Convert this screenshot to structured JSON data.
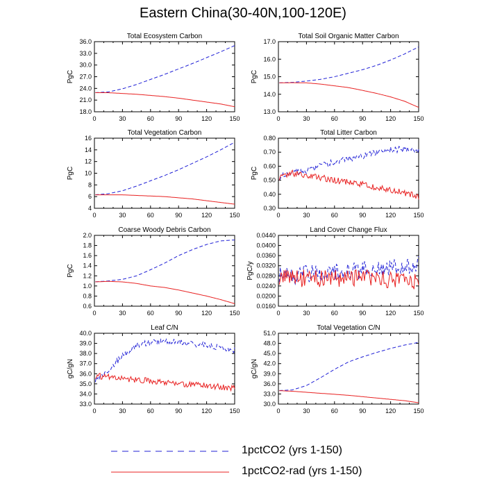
{
  "figure": {
    "title": "Eastern China(30-40N,100-120E)"
  },
  "legend": [
    {
      "label": "1pctCO2 (yrs 1-150)",
      "color": "#1f1fd6",
      "dash": "dashed"
    },
    {
      "label": "1pctCO2-rad (yrs 1-150)",
      "color": "#e82020",
      "dash": "solid"
    }
  ],
  "chart_data": [
    {
      "type": "line",
      "title": "Total Ecosystem Carbon",
      "ylabel": "PgC",
      "xlim": [
        0,
        150
      ],
      "ylim": [
        18,
        36
      ],
      "xticks": [
        0,
        30,
        60,
        90,
        120,
        150
      ],
      "yticks": [
        "18.0",
        "21.0",
        "24.0",
        "27.0",
        "30.0",
        "33.0",
        "36.0"
      ],
      "series": [
        {
          "name": "1pctCO2 (yrs 1-150)",
          "x": [
            0,
            15,
            30,
            45,
            60,
            75,
            90,
            105,
            120,
            135,
            150
          ],
          "y": [
            22.9,
            23.1,
            23.9,
            25.0,
            26.3,
            27.6,
            29.0,
            30.4,
            31.9,
            33.4,
            35.0
          ],
          "noise": 0
        },
        {
          "name": "1pctCO2-rad (yrs 1-150)",
          "x": [
            0,
            15,
            30,
            45,
            60,
            75,
            90,
            105,
            120,
            135,
            150
          ],
          "y": [
            22.9,
            22.9,
            22.7,
            22.5,
            22.2,
            21.9,
            21.5,
            21.0,
            20.5,
            20.0,
            19.3
          ],
          "noise": 0
        }
      ]
    },
    {
      "type": "line",
      "title": "Total Soil Organic Matter Carbon",
      "ylabel": "PgC",
      "xlim": [
        0,
        150
      ],
      "ylim": [
        13,
        17
      ],
      "xticks": [
        0,
        30,
        60,
        90,
        120,
        150
      ],
      "yticks": [
        "13.0",
        "14.0",
        "15.0",
        "16.0",
        "17.0"
      ],
      "series": [
        {
          "name": "1pctCO2 (yrs 1-150)",
          "x": [
            0,
            15,
            30,
            45,
            60,
            75,
            90,
            105,
            120,
            135,
            150
          ],
          "y": [
            14.65,
            14.68,
            14.75,
            14.85,
            15.0,
            15.2,
            15.4,
            15.65,
            15.95,
            16.3,
            16.7
          ],
          "noise": 0
        },
        {
          "name": "1pctCO2-rad (yrs 1-150)",
          "x": [
            0,
            15,
            30,
            45,
            60,
            75,
            90,
            105,
            120,
            135,
            150
          ],
          "y": [
            14.65,
            14.66,
            14.65,
            14.58,
            14.48,
            14.38,
            14.22,
            14.05,
            13.85,
            13.6,
            13.25
          ],
          "noise": 0
        }
      ]
    },
    {
      "type": "line",
      "title": "Total Vegetation Carbon",
      "ylabel": "PgC",
      "xlim": [
        0,
        150
      ],
      "ylim": [
        4,
        16
      ],
      "xticks": [
        0,
        30,
        60,
        90,
        120,
        150
      ],
      "yticks": [
        "4",
        "6",
        "8",
        "10",
        "12",
        "14",
        "16"
      ],
      "series": [
        {
          "name": "1pctCO2 (yrs 1-150)",
          "x": [
            0,
            15,
            30,
            45,
            60,
            75,
            90,
            105,
            120,
            135,
            150
          ],
          "y": [
            6.3,
            6.5,
            7.0,
            7.8,
            8.7,
            9.6,
            10.6,
            11.7,
            12.8,
            14.0,
            15.3
          ],
          "noise": 0
        },
        {
          "name": "1pctCO2-rad (yrs 1-150)",
          "x": [
            0,
            15,
            30,
            45,
            60,
            75,
            90,
            105,
            120,
            135,
            150
          ],
          "y": [
            6.3,
            6.3,
            6.3,
            6.2,
            6.1,
            6.0,
            5.8,
            5.6,
            5.3,
            5.0,
            4.7
          ],
          "noise": 0
        }
      ]
    },
    {
      "type": "line",
      "title": "Total Litter Carbon",
      "ylabel": "PgC",
      "xlim": [
        0,
        150
      ],
      "ylim": [
        0.3,
        0.8
      ],
      "xticks": [
        0,
        30,
        60,
        90,
        120,
        150
      ],
      "yticks": [
        "0.30",
        "0.40",
        "0.50",
        "0.60",
        "0.70",
        "0.80"
      ],
      "series": [
        {
          "name": "1pctCO2 (yrs 1-150)",
          "x": [
            0,
            15,
            30,
            45,
            60,
            75,
            90,
            105,
            120,
            135,
            150
          ],
          "y": [
            0.52,
            0.56,
            0.57,
            0.6,
            0.63,
            0.65,
            0.67,
            0.7,
            0.72,
            0.72,
            0.71
          ],
          "noise": 0.022
        },
        {
          "name": "1pctCO2-rad (yrs 1-150)",
          "x": [
            0,
            15,
            30,
            45,
            60,
            75,
            90,
            105,
            120,
            135,
            150
          ],
          "y": [
            0.52,
            0.55,
            0.53,
            0.52,
            0.5,
            0.49,
            0.47,
            0.45,
            0.43,
            0.41,
            0.38
          ],
          "noise": 0.022
        }
      ]
    },
    {
      "type": "line",
      "title": "Coarse Woody Debris Carbon",
      "ylabel": "PgC",
      "xlim": [
        0,
        150
      ],
      "ylim": [
        0.6,
        2.0
      ],
      "xticks": [
        0,
        30,
        60,
        90,
        120,
        150
      ],
      "yticks": [
        "0.6",
        "0.8",
        "1.0",
        "1.2",
        "1.4",
        "1.6",
        "1.8",
        "2.0"
      ],
      "series": [
        {
          "name": "1pctCO2 (yrs 1-150)",
          "x": [
            0,
            15,
            30,
            45,
            60,
            75,
            90,
            105,
            120,
            135,
            150
          ],
          "y": [
            1.08,
            1.1,
            1.13,
            1.2,
            1.32,
            1.45,
            1.6,
            1.72,
            1.82,
            1.89,
            1.91
          ],
          "noise": 0
        },
        {
          "name": "1pctCO2-rad (yrs 1-150)",
          "x": [
            0,
            15,
            30,
            45,
            60,
            75,
            90,
            105,
            120,
            135,
            150
          ],
          "y": [
            1.08,
            1.09,
            1.08,
            1.05,
            1.0,
            0.97,
            0.92,
            0.86,
            0.8,
            0.73,
            0.65
          ],
          "noise": 0
        }
      ]
    },
    {
      "type": "line",
      "title": "Land Cover Change Flux",
      "ylabel": "PgC/y",
      "xlim": [
        0,
        150
      ],
      "ylim": [
        0.016,
        0.044
      ],
      "xticks": [
        0,
        30,
        60,
        90,
        120,
        150
      ],
      "yticks": [
        "0.0160",
        "0.0200",
        "0.0240",
        "0.0280",
        "0.0320",
        "0.0360",
        "0.0400",
        "0.0440"
      ],
      "series": [
        {
          "name": "1pctCO2 (yrs 1-150)",
          "x": [
            0,
            15,
            30,
            45,
            60,
            75,
            90,
            105,
            120,
            135,
            150
          ],
          "y": [
            0.029,
            0.027,
            0.029,
            0.029,
            0.03,
            0.03,
            0.03,
            0.031,
            0.031,
            0.032,
            0.033
          ],
          "noise": 0.0035
        },
        {
          "name": "1pctCO2-rad (yrs 1-150)",
          "x": [
            0,
            15,
            30,
            45,
            60,
            75,
            90,
            105,
            120,
            135,
            150
          ],
          "y": [
            0.028,
            0.027,
            0.027,
            0.027,
            0.027,
            0.027,
            0.027,
            0.027,
            0.026,
            0.026,
            0.026
          ],
          "noise": 0.0035
        }
      ]
    },
    {
      "type": "line",
      "title": "Leaf C/N",
      "ylabel": "gC/gN",
      "xlim": [
        0,
        150
      ],
      "ylim": [
        33,
        40
      ],
      "xticks": [
        0,
        30,
        60,
        90,
        120,
        150
      ],
      "yticks": [
        "33.0",
        "34.0",
        "35.0",
        "36.0",
        "37.0",
        "38.0",
        "39.0",
        "40.0"
      ],
      "series": [
        {
          "name": "1pctCO2 (yrs 1-150)",
          "x": [
            0,
            15,
            30,
            45,
            60,
            75,
            90,
            105,
            120,
            135,
            150
          ],
          "y": [
            35.4,
            36.3,
            37.8,
            38.8,
            39.1,
            39.2,
            39.1,
            38.9,
            38.8,
            38.6,
            38.3
          ],
          "noise": 0.3
        },
        {
          "name": "1pctCO2-rad (yrs 1-150)",
          "x": [
            0,
            15,
            30,
            45,
            60,
            75,
            90,
            105,
            120,
            135,
            150
          ],
          "y": [
            35.8,
            35.7,
            35.5,
            35.4,
            35.3,
            35.1,
            35.0,
            34.9,
            34.8,
            34.7,
            34.6
          ],
          "noise": 0.3
        }
      ]
    },
    {
      "type": "line",
      "title": "Total Vegetation C/N",
      "ylabel": "gC/gN",
      "xlim": [
        0,
        150
      ],
      "ylim": [
        30,
        51
      ],
      "xticks": [
        0,
        30,
        60,
        90,
        120,
        150
      ],
      "yticks": [
        "30.0",
        "33.0",
        "36.0",
        "39.0",
        "42.0",
        "45.0",
        "48.0",
        "51.0"
      ],
      "series": [
        {
          "name": "1pctCO2 (yrs 1-150)",
          "x": [
            0,
            15,
            30,
            45,
            60,
            75,
            90,
            105,
            120,
            135,
            150
          ],
          "y": [
            34.0,
            34.2,
            35.5,
            37.8,
            40.3,
            42.5,
            44.0,
            45.3,
            46.5,
            47.5,
            48.3
          ],
          "noise": 0
        },
        {
          "name": "1pctCO2-rad (yrs 1-150)",
          "x": [
            0,
            15,
            30,
            45,
            60,
            75,
            90,
            105,
            120,
            135,
            150
          ],
          "y": [
            34.0,
            33.8,
            33.5,
            33.2,
            32.9,
            32.6,
            32.2,
            31.8,
            31.4,
            31.0,
            30.4
          ],
          "noise": 0
        }
      ]
    }
  ]
}
